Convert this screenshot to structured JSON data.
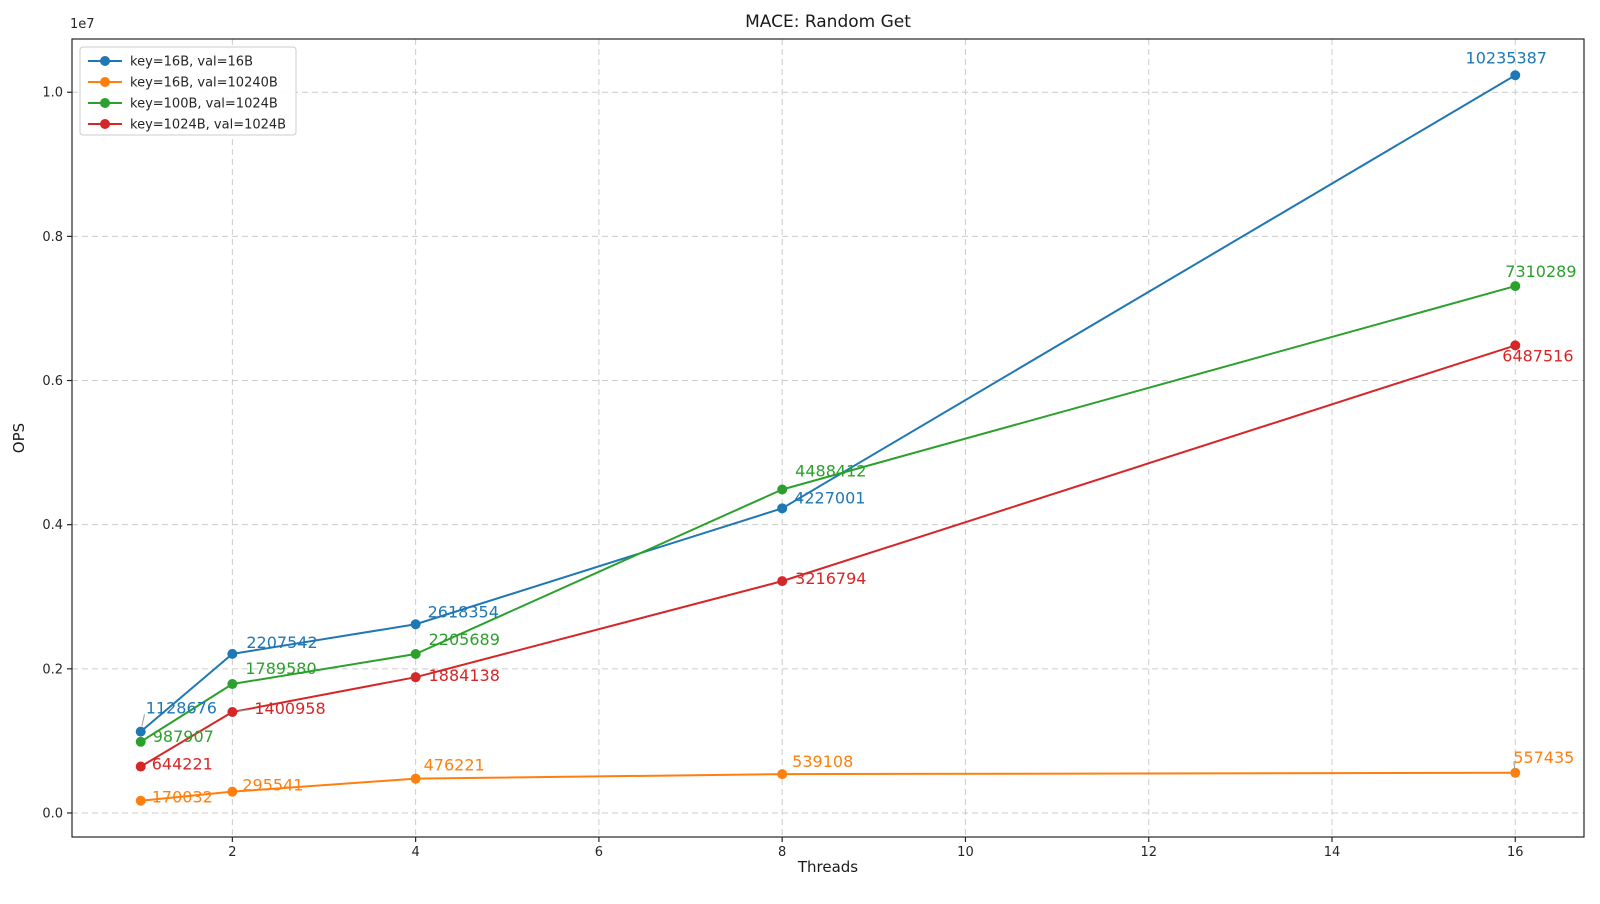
{
  "chart_data": {
    "type": "line",
    "title": "MACE: Random Get",
    "xlabel": "Threads",
    "ylabel": "OPS",
    "y_offset_text": "1e7",
    "x": [
      1,
      2,
      4,
      8,
      16
    ],
    "series": [
      {
        "name": "key=16B, val=16B",
        "color": "#1f77b4",
        "values": [
          1128676,
          2207542,
          2618354,
          4227001,
          10235387
        ]
      },
      {
        "name": "key=16B, val=10240B",
        "color": "#ff7f0e",
        "values": [
          170032,
          295541,
          476221,
          539108,
          557435
        ]
      },
      {
        "name": "key=100B, val=1024B",
        "color": "#2ca02c",
        "values": [
          987907,
          1789580,
          2205689,
          4488412,
          7310289
        ]
      },
      {
        "name": "key=1024B, val=1024B",
        "color": "#d62728",
        "values": [
          644221,
          1400958,
          1884138,
          3216794,
          6487516
        ]
      }
    ],
    "xticks": [
      2,
      4,
      6,
      8,
      10,
      12,
      14,
      16
    ],
    "yticks": [
      0,
      2000000,
      4000000,
      6000000,
      8000000,
      10000000
    ],
    "ytick_labels": [
      "0.0",
      "0.2",
      "0.4",
      "0.6",
      "0.8",
      "1.0"
    ],
    "xlim": [
      0.25,
      16.75
    ],
    "ylim": [
      -333236,
      10738655
    ],
    "grid": true,
    "grid_style": "dashed",
    "grid_color": "#cccccc",
    "spine_color": "#262626",
    "leader_color": "#999999",
    "legend_position": "upper left",
    "marker": "circle",
    "point_labels_visible": true,
    "label_offsets": [
      [
        [
          5,
          -23,
          "start",
          true
        ],
        [
          14,
          -11,
          "start",
          false
        ],
        [
          12,
          -12,
          "start",
          false
        ],
        [
          12,
          -10,
          "start",
          false
        ],
        [
          -9,
          -17,
          "middle",
          false
        ]
      ],
      [
        [
          11,
          -3,
          "start",
          false
        ],
        [
          10,
          -6,
          "start",
          false
        ],
        [
          8,
          -13,
          "start",
          false
        ],
        [
          10,
          -12,
          "start",
          false
        ],
        [
          -2,
          -15,
          "start",
          true
        ]
      ],
      [
        [
          12,
          -5,
          "start",
          false
        ],
        [
          13,
          -15,
          "start",
          false
        ],
        [
          13,
          -14,
          "start",
          false
        ],
        [
          13,
          -18,
          "start",
          false
        ],
        [
          -10,
          -14,
          "start",
          false
        ]
      ],
      [
        [
          11,
          -2,
          "start",
          false
        ],
        [
          22,
          -3,
          "start",
          true
        ],
        [
          13,
          -1,
          "start",
          false
        ],
        [
          13,
          -2,
          "start",
          false
        ],
        [
          -13,
          11,
          "start",
          false
        ]
      ]
    ]
  }
}
